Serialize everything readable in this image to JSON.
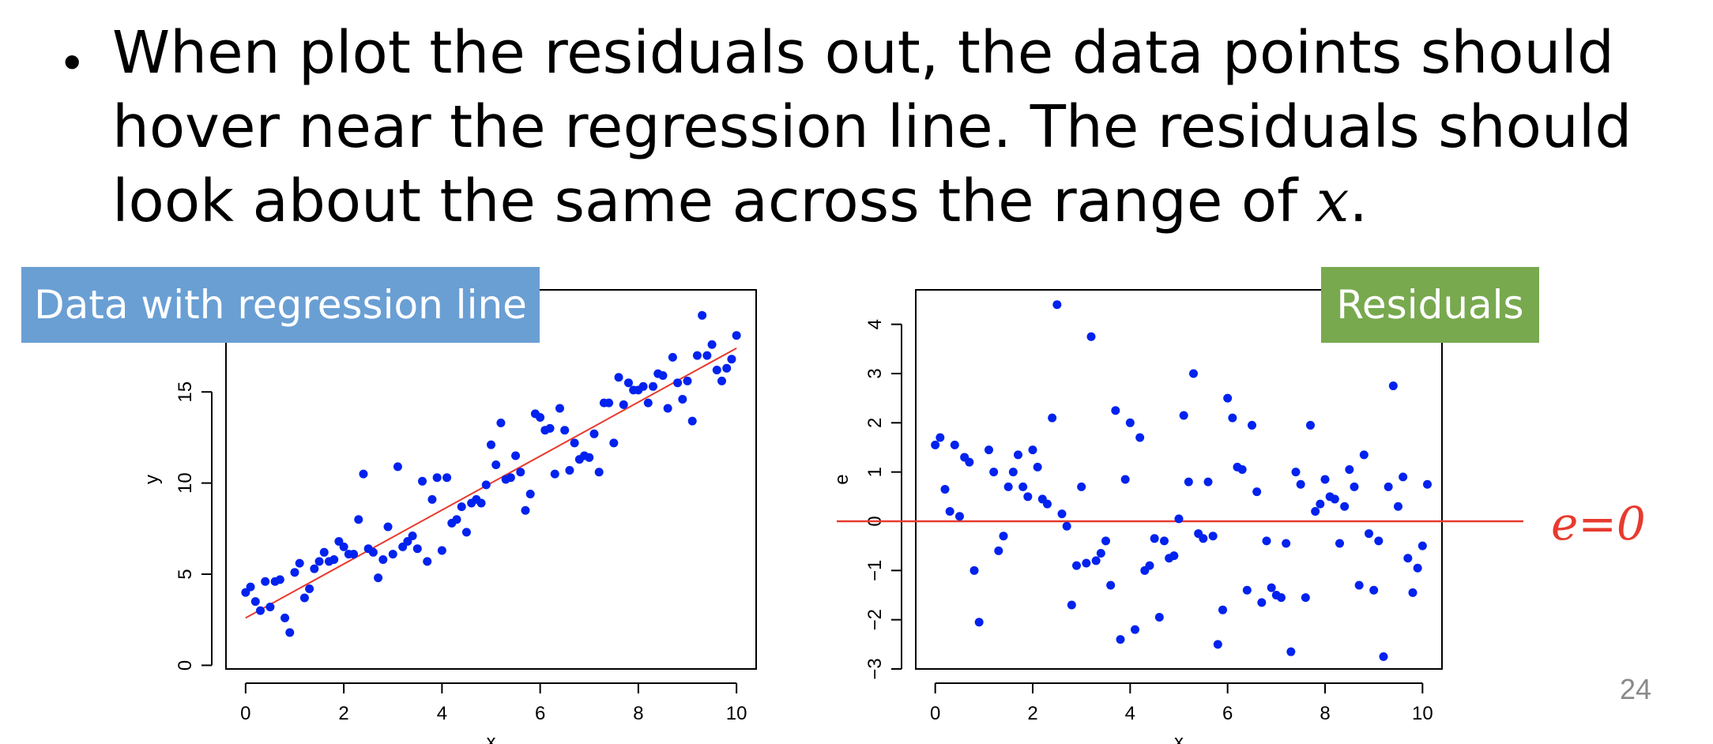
{
  "slide": {
    "bullet_text": "When plot the residuals out, the data points should hover near the regression line. The residuals should look about the same across the range of ",
    "bullet_var": "x",
    "bullet_end": ".",
    "label_left": "Data with regression line",
    "label_right": "Residuals",
    "annotation": "e=0",
    "page_number": "24",
    "colors": {
      "label_left_bg": "#6a9fd4",
      "label_right_bg": "#78a94f",
      "points": "#0022ee",
      "line": "#e83a2e",
      "annotation": "#e83a2e"
    }
  },
  "chart_data": [
    {
      "type": "scatter",
      "title": "",
      "xlabel": "x",
      "ylabel": "y",
      "xlim": [
        -0.4,
        10.4
      ],
      "ylim": [
        -0.2,
        20.6
      ],
      "xticks": [
        "0",
        "2",
        "4",
        "6",
        "8",
        "10"
      ],
      "yticks": [
        "0",
        "5",
        "10",
        "15"
      ],
      "regression_line": {
        "x": [
          0,
          10
        ],
        "y": [
          2.6,
          17.4
        ]
      },
      "points": [
        [
          0.0,
          4.0
        ],
        [
          0.1,
          4.3
        ],
        [
          0.2,
          3.5
        ],
        [
          0.3,
          3.0
        ],
        [
          0.4,
          4.6
        ],
        [
          0.5,
          3.2
        ],
        [
          0.6,
          4.6
        ],
        [
          0.7,
          4.7
        ],
        [
          0.8,
          2.6
        ],
        [
          0.9,
          1.8
        ],
        [
          1.0,
          5.1
        ],
        [
          1.1,
          5.6
        ],
        [
          1.2,
          3.7
        ],
        [
          1.3,
          4.2
        ],
        [
          1.4,
          5.3
        ],
        [
          1.5,
          5.7
        ],
        [
          1.6,
          6.2
        ],
        [
          1.7,
          5.7
        ],
        [
          1.8,
          5.8
        ],
        [
          1.9,
          6.8
        ],
        [
          2.0,
          6.5
        ],
        [
          2.1,
          6.1
        ],
        [
          2.2,
          6.1
        ],
        [
          2.3,
          8.0
        ],
        [
          2.4,
          10.5
        ],
        [
          2.5,
          6.4
        ],
        [
          2.6,
          6.2
        ],
        [
          2.7,
          4.8
        ],
        [
          2.8,
          5.8
        ],
        [
          2.9,
          7.6
        ],
        [
          3.0,
          6.1
        ],
        [
          3.1,
          10.9
        ],
        [
          3.2,
          6.5
        ],
        [
          3.3,
          6.8
        ],
        [
          3.4,
          7.1
        ],
        [
          3.5,
          6.4
        ],
        [
          3.6,
          10.1
        ],
        [
          3.7,
          5.7
        ],
        [
          3.8,
          9.1
        ],
        [
          3.9,
          10.3
        ],
        [
          4.0,
          6.3
        ],
        [
          4.1,
          10.3
        ],
        [
          4.2,
          7.8
        ],
        [
          4.3,
          8.0
        ],
        [
          4.4,
          8.7
        ],
        [
          4.5,
          7.3
        ],
        [
          4.6,
          8.9
        ],
        [
          4.7,
          9.1
        ],
        [
          4.8,
          8.9
        ],
        [
          4.9,
          9.9
        ],
        [
          5.0,
          12.1
        ],
        [
          5.1,
          11.0
        ],
        [
          5.2,
          13.3
        ],
        [
          5.3,
          10.2
        ],
        [
          5.4,
          10.3
        ],
        [
          5.5,
          11.5
        ],
        [
          5.6,
          10.6
        ],
        [
          5.7,
          8.5
        ],
        [
          5.8,
          9.4
        ],
        [
          5.9,
          13.8
        ],
        [
          6.0,
          13.6
        ],
        [
          6.1,
          12.9
        ],
        [
          6.2,
          13.0
        ],
        [
          6.3,
          10.5
        ],
        [
          6.4,
          14.1
        ],
        [
          6.5,
          12.9
        ],
        [
          6.6,
          10.7
        ],
        [
          6.7,
          12.2
        ],
        [
          6.8,
          11.3
        ],
        [
          6.9,
          11.5
        ],
        [
          7.0,
          11.4
        ],
        [
          7.1,
          12.7
        ],
        [
          7.2,
          10.6
        ],
        [
          7.3,
          14.4
        ],
        [
          7.4,
          14.4
        ],
        [
          7.5,
          12.2
        ],
        [
          7.6,
          15.8
        ],
        [
          7.7,
          14.3
        ],
        [
          7.8,
          15.5
        ],
        [
          7.9,
          15.1
        ],
        [
          8.0,
          15.1
        ],
        [
          8.1,
          15.3
        ],
        [
          8.2,
          14.4
        ],
        [
          8.3,
          15.3
        ],
        [
          8.4,
          16.0
        ],
        [
          8.5,
          15.9
        ],
        [
          8.6,
          14.1
        ],
        [
          8.7,
          16.9
        ],
        [
          8.8,
          15.5
        ],
        [
          8.9,
          14.6
        ],
        [
          9.0,
          15.6
        ],
        [
          9.1,
          13.4
        ],
        [
          9.2,
          17.0
        ],
        [
          9.3,
          19.2
        ],
        [
          9.4,
          17.0
        ],
        [
          9.5,
          17.6
        ],
        [
          9.6,
          16.2
        ],
        [
          9.7,
          15.6
        ],
        [
          9.8,
          16.3
        ],
        [
          9.9,
          16.8
        ],
        [
          10.0,
          18.1
        ]
      ]
    },
    {
      "type": "scatter",
      "title": "",
      "xlabel": "x",
      "ylabel": "e",
      "xlim": [
        -0.4,
        10.4
      ],
      "ylim": [
        -3.0,
        4.7
      ],
      "xticks": [
        "0",
        "2",
        "4",
        "6",
        "8",
        "10"
      ],
      "yticks": [
        "−3",
        "−2",
        "−1",
        "0",
        "1",
        "2",
        "3",
        "4"
      ],
      "reference_line": {
        "y": 0
      },
      "points": [
        [
          0.0,
          1.55
        ],
        [
          0.1,
          1.7
        ],
        [
          0.2,
          0.65
        ],
        [
          0.3,
          0.2
        ],
        [
          0.4,
          1.55
        ],
        [
          0.5,
          0.1
        ],
        [
          0.6,
          1.3
        ],
        [
          0.7,
          1.2
        ],
        [
          0.8,
          -1.0
        ],
        [
          0.9,
          -2.05
        ],
        [
          1.1,
          1.45
        ],
        [
          1.2,
          1.0
        ],
        [
          1.3,
          -0.6
        ],
        [
          1.4,
          -0.3
        ],
        [
          1.5,
          0.7
        ],
        [
          1.6,
          1.0
        ],
        [
          1.7,
          1.35
        ],
        [
          1.8,
          0.7
        ],
        [
          1.9,
          0.5
        ],
        [
          2.0,
          1.45
        ],
        [
          2.1,
          1.1
        ],
        [
          2.2,
          0.45
        ],
        [
          2.3,
          0.35
        ],
        [
          2.4,
          2.1
        ],
        [
          2.5,
          4.4
        ],
        [
          2.6,
          0.15
        ],
        [
          2.7,
          -0.1
        ],
        [
          2.8,
          -1.7
        ],
        [
          2.9,
          -0.9
        ],
        [
          3.0,
          0.7
        ],
        [
          3.1,
          -0.85
        ],
        [
          3.2,
          3.75
        ],
        [
          3.3,
          -0.8
        ],
        [
          3.4,
          -0.65
        ],
        [
          3.5,
          -0.4
        ],
        [
          3.6,
          -1.3
        ],
        [
          3.7,
          2.25
        ],
        [
          3.8,
          -2.4
        ],
        [
          3.9,
          0.85
        ],
        [
          4.0,
          2.0
        ],
        [
          4.1,
          -2.2
        ],
        [
          4.2,
          1.7
        ],
        [
          4.3,
          -1.0
        ],
        [
          4.4,
          -0.9
        ],
        [
          4.5,
          -0.35
        ],
        [
          4.6,
          -1.95
        ],
        [
          4.7,
          -0.4
        ],
        [
          4.8,
          -0.75
        ],
        [
          4.9,
          -0.7
        ],
        [
          5.0,
          0.05
        ],
        [
          5.1,
          2.15
        ],
        [
          5.2,
          0.8
        ],
        [
          5.3,
          3.0
        ],
        [
          5.4,
          -0.25
        ],
        [
          5.5,
          -0.35
        ],
        [
          5.6,
          0.8
        ],
        [
          5.7,
          -0.3
        ],
        [
          5.8,
          -2.5
        ],
        [
          5.9,
          -1.8
        ],
        [
          6.0,
          2.5
        ],
        [
          6.1,
          2.1
        ],
        [
          6.2,
          1.1
        ],
        [
          6.3,
          1.05
        ],
        [
          6.4,
          -1.4
        ],
        [
          6.5,
          1.95
        ],
        [
          6.6,
          0.6
        ],
        [
          6.7,
          -1.65
        ],
        [
          6.8,
          -0.4
        ],
        [
          6.9,
          -1.35
        ],
        [
          7.0,
          -1.5
        ],
        [
          7.1,
          -1.55
        ],
        [
          7.2,
          -0.45
        ],
        [
          7.3,
          -2.65
        ],
        [
          7.4,
          1.0
        ],
        [
          7.5,
          0.75
        ],
        [
          7.6,
          -1.55
        ],
        [
          7.7,
          1.95
        ],
        [
          7.8,
          0.2
        ],
        [
          7.9,
          0.35
        ],
        [
          8.0,
          0.85
        ],
        [
          8.1,
          0.5
        ],
        [
          8.2,
          0.45
        ],
        [
          8.3,
          -0.45
        ],
        [
          8.4,
          0.3
        ],
        [
          8.5,
          1.05
        ],
        [
          8.6,
          0.7
        ],
        [
          8.7,
          -1.3
        ],
        [
          8.8,
          1.35
        ],
        [
          8.9,
          -0.25
        ],
        [
          9.0,
          -1.4
        ],
        [
          9.1,
          -0.4
        ],
        [
          9.2,
          -2.75
        ],
        [
          9.3,
          0.7
        ],
        [
          9.4,
          2.75
        ],
        [
          9.5,
          0.3
        ],
        [
          9.6,
          0.9
        ],
        [
          9.7,
          -0.75
        ],
        [
          9.8,
          -1.45
        ],
        [
          9.9,
          -0.95
        ],
        [
          10.0,
          -0.5
        ],
        [
          10.1,
          0.75
        ]
      ]
    }
  ]
}
